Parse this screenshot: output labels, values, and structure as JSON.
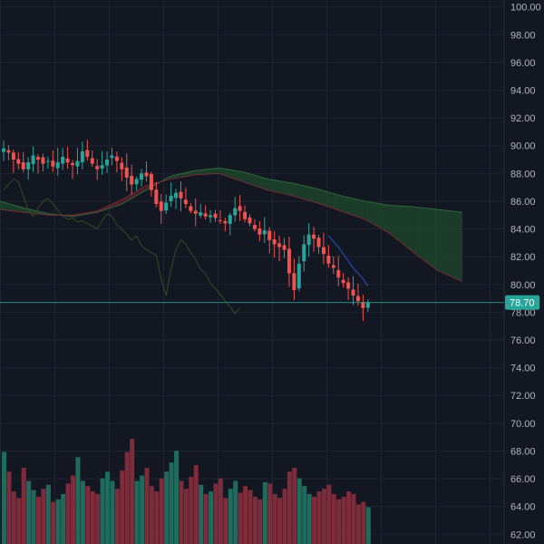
{
  "colors": {
    "background": "#131722",
    "grid": "#1f2433",
    "axis_border": "#2a2e39",
    "axis_text": "#b2b5be",
    "candle_up": "#26a69a",
    "candle_down": "#ef5350",
    "volume_up": "#1f6b5d",
    "volume_down": "#7e2b3a",
    "last_price": "#26a69a",
    "kumo_bull_fill": "#1e4d2b",
    "kumo_bear_fill": "#5c1f28",
    "kumo_bull_line": "#2e6b3a",
    "kumo_bear_line": "#7a2a33",
    "tenkan": "#2962ff",
    "chikou": "#3a4a1e"
  },
  "price_axis": {
    "labels": [
      "100.00",
      "98.00",
      "96.00",
      "94.00",
      "92.00",
      "90.00",
      "88.00",
      "86.00",
      "84.00",
      "82.00",
      "80.00",
      "78.00",
      "76.00",
      "74.00",
      "72.00",
      "70.00",
      "68.00",
      "66.00",
      "64.00",
      "62.00"
    ],
    "last_price_label": "78.70"
  },
  "chart_data": {
    "type": "candlestick",
    "ylim": [
      61.3,
      100.5
    ],
    "grid": true,
    "last_price": 78.7,
    "price_path": [
      89.8,
      89.5,
      89.0,
      88.7,
      88.3,
      88.8,
      89.3,
      89.0,
      88.7,
      88.9,
      88.5,
      88.8,
      89.2,
      88.8,
      88.6,
      88.9,
      89.6,
      89.2,
      88.7,
      88.3,
      88.6,
      89.0,
      89.3,
      88.9,
      88.3,
      87.7,
      87.2,
      87.6,
      88.0,
      87.8,
      86.8,
      85.8,
      85.3,
      85.9,
      86.4,
      86.6,
      86.2,
      85.8,
      85.3,
      85.1,
      85.2,
      84.9,
      85.0,
      84.8,
      84.6,
      84.4,
      85.0,
      85.5,
      85.3,
      84.7,
      84.4,
      84.0,
      83.6,
      83.9,
      83.2,
      82.9,
      82.7,
      82.5,
      80.8,
      79.6,
      81.5,
      82.9,
      83.6,
      83.3,
      82.7,
      82.2,
      81.5,
      81.2,
      80.5,
      80.1,
      79.7,
      79.2,
      78.8,
      78.3,
      78.7
    ],
    "kumo_span_a": [
      86.0,
      85.5,
      85.1,
      84.9,
      85.2,
      85.8,
      86.8,
      87.8,
      88.2,
      88.4,
      88.1,
      87.6,
      87.3,
      86.9,
      86.4,
      86.0,
      85.7,
      85.6,
      85.4,
      85.2
    ],
    "kumo_span_b": [
      85.4,
      85.2,
      85.0,
      85.0,
      85.3,
      86.1,
      87.1,
      87.6,
      87.9,
      88.0,
      87.4,
      86.8,
      86.4,
      85.9,
      85.3,
      84.7,
      83.7,
      82.3,
      81.0,
      80.2
    ],
    "tenkan_sen": [
      83.5,
      83.1,
      82.7,
      82.2,
      81.7,
      81.2,
      80.8,
      80.4,
      79.9
    ],
    "volume_ylim": [
      0,
      100
    ],
    "volumes": [
      70,
      55,
      40,
      35,
      58,
      48,
      41,
      36,
      42,
      45,
      32,
      34,
      38,
      46,
      52,
      66,
      48,
      44,
      40,
      38,
      50,
      55,
      48,
      42,
      56,
      70,
      80,
      48,
      52,
      58,
      44,
      40,
      50,
      55,
      62,
      71,
      48,
      42,
      51,
      60,
      45,
      38,
      40,
      46,
      50,
      35,
      42,
      48,
      39,
      44,
      41,
      36,
      34,
      47,
      46,
      38,
      35,
      42,
      55,
      58,
      50,
      44,
      38,
      36,
      40,
      42,
      45,
      38,
      34,
      36,
      40,
      38,
      30,
      32,
      28
    ]
  }
}
